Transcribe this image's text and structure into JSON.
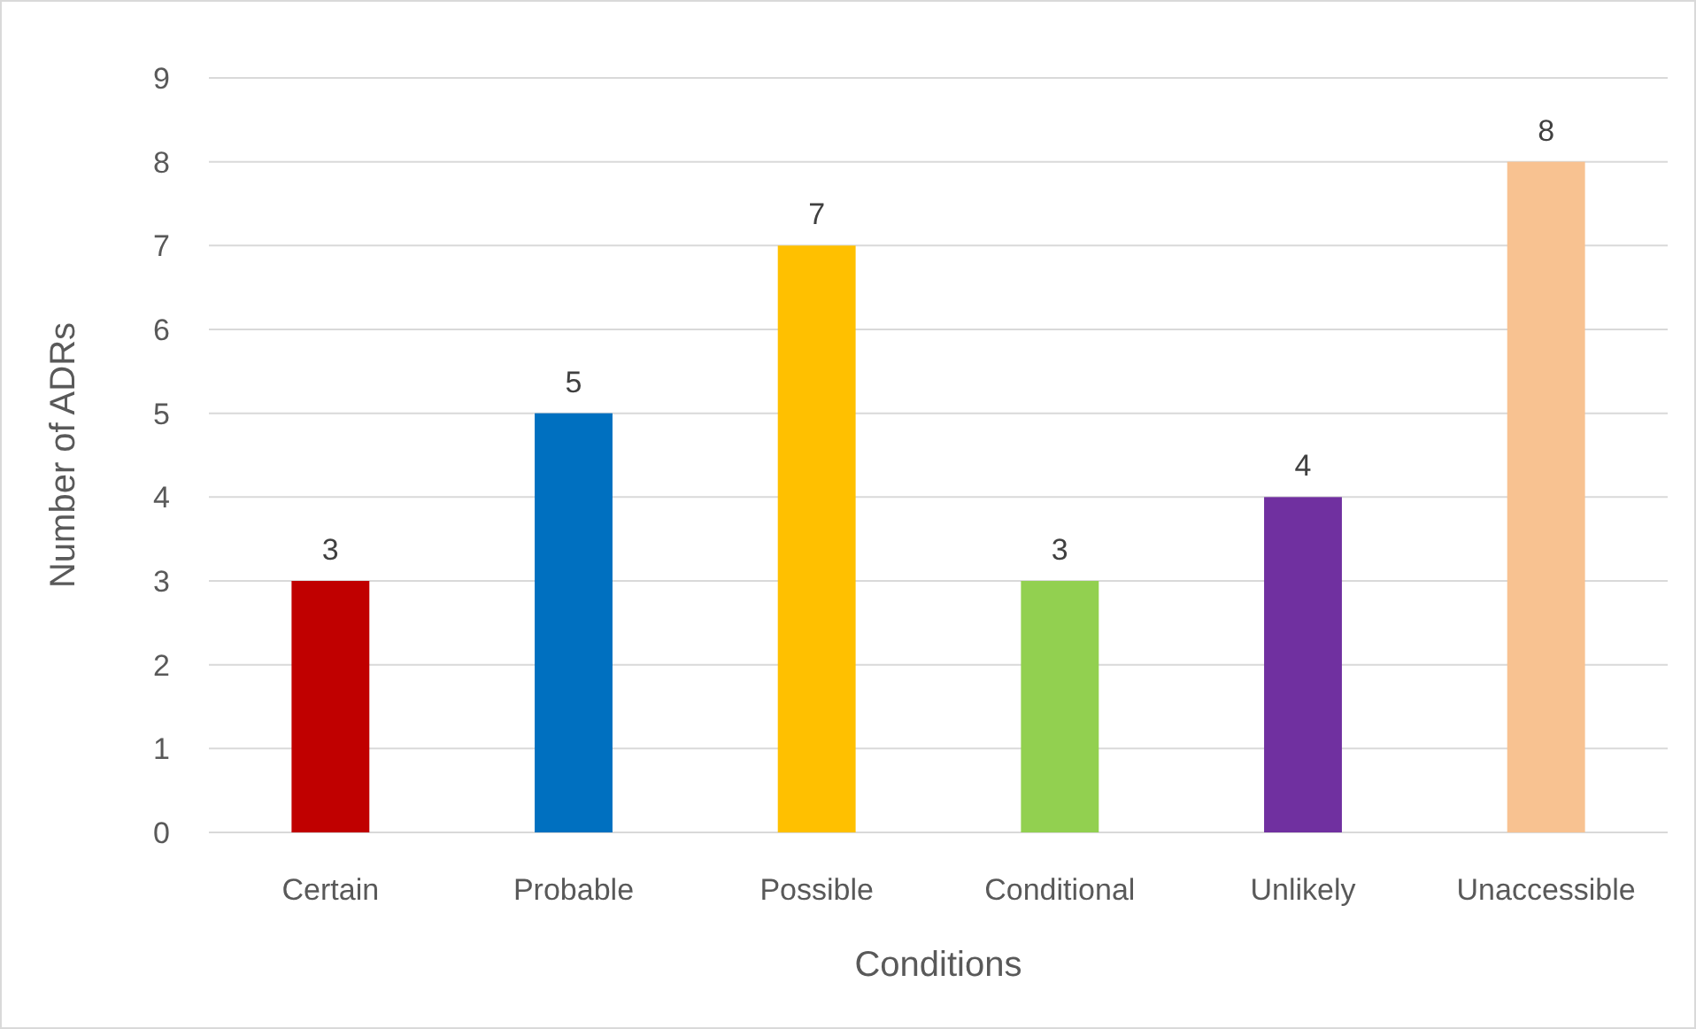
{
  "chart_data": {
    "type": "bar",
    "xlabel": "Conditions",
    "ylabel": "Number of ADRs",
    "categories": [
      "Certain",
      "Probable",
      "Possible",
      "Conditional",
      "Unlikely",
      "Unaccessible"
    ],
    "values": [
      3,
      5,
      7,
      3,
      4,
      8
    ],
    "colors": [
      "#c00000",
      "#0070c0",
      "#ffc000",
      "#92d050",
      "#7030a0",
      "#f8c291"
    ],
    "ylim": [
      0,
      9
    ],
    "yticks": [
      0,
      1,
      2,
      3,
      4,
      5,
      6,
      7,
      8,
      9
    ],
    "grid": "y",
    "data_labels": true
  }
}
